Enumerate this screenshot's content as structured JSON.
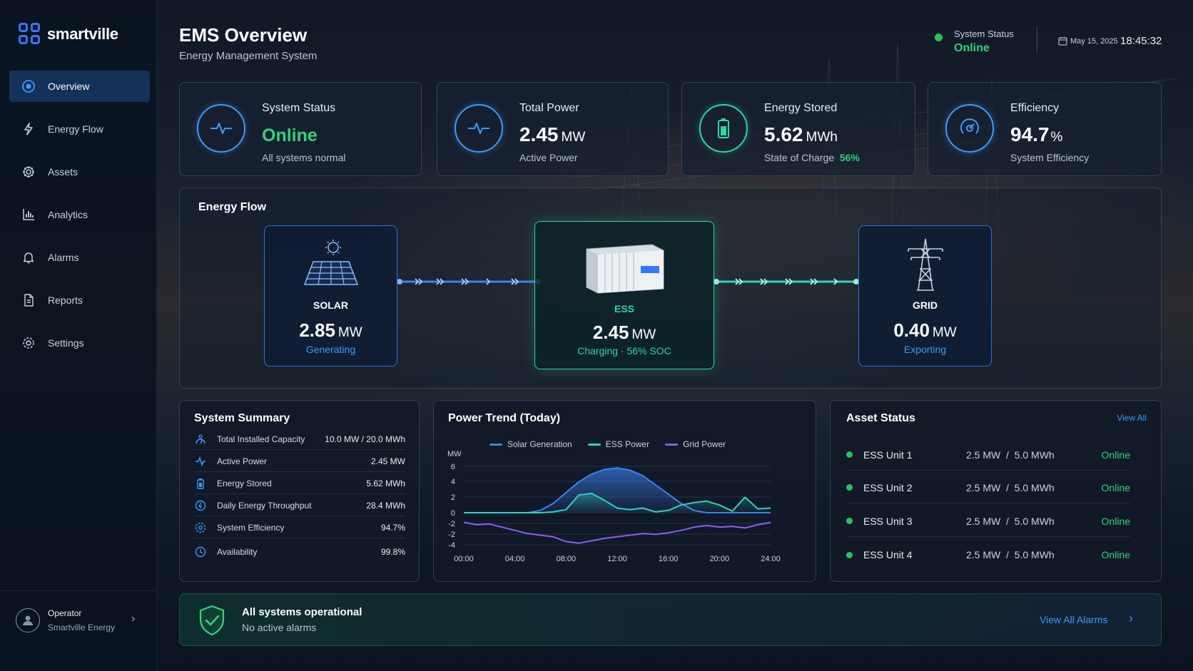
{
  "brand": {
    "name": "smartville"
  },
  "colors": {
    "accent": "#2f7bff",
    "online": "#22c55e",
    "ess": "#2fd6a0",
    "grid": "#8b5cf6"
  },
  "sidebar": {
    "items": [
      {
        "label": "Overview",
        "icon": "overview-icon",
        "active": true
      },
      {
        "label": "Energy Flow",
        "icon": "energy-flow-icon"
      },
      {
        "label": "Assets",
        "icon": "assets-icon"
      },
      {
        "label": "Analytics",
        "icon": "analytics-icon"
      },
      {
        "label": "Alarms",
        "icon": "bell-icon"
      },
      {
        "label": "Reports",
        "icon": "report-icon"
      },
      {
        "label": "Settings",
        "icon": "gear-icon"
      }
    ],
    "operator": {
      "name": "Operator",
      "org": "Smartville Energy"
    }
  },
  "header": {
    "title": "EMS Overview",
    "subtitle": "Energy Management System",
    "status_label": "System Status",
    "status_value": "Online",
    "date": "May 15, 2025",
    "time": "18:45:32"
  },
  "kpis": [
    {
      "title": "System Status",
      "value": "Online",
      "unit": "",
      "sub": "All systems normal",
      "icon": "pulse-icon"
    },
    {
      "title": "Total Power",
      "value": "2.45",
      "unit": "MW",
      "sub": "Active Power",
      "icon": "pulse-icon"
    },
    {
      "title": "Energy Stored",
      "value": "5.62",
      "unit": "MWh",
      "sub": "State of Charge",
      "sub_value": "56%",
      "icon": "battery-icon"
    },
    {
      "title": "Efficiency",
      "value": "94.7",
      "unit": "%",
      "sub": "System Efficiency",
      "icon": "gauge-icon"
    }
  ],
  "energy_flow": {
    "title": "Energy Flow",
    "solar": {
      "name": "SOLAR",
      "value": "2.85",
      "unit": "MW",
      "state": "Generating"
    },
    "ess": {
      "name": "ESS",
      "value": "2.45",
      "unit": "MW",
      "state": "Charging",
      "soc": "56% SOC",
      "sep": "·"
    },
    "grid": {
      "name": "GRID",
      "value": "0.40",
      "unit": "MW",
      "state": "Exporting"
    }
  },
  "summary": {
    "title": "System Summary",
    "rows": [
      {
        "label": "Total Installed Capacity",
        "value": "10.0 MW / 20.0 MWh",
        "icon": "capacity-icon"
      },
      {
        "label": "Active Power",
        "value": "2.45 MW",
        "icon": "pulse-icon"
      },
      {
        "label": "Energy Stored",
        "value": "5.62 MWh",
        "icon": "battery-icon"
      },
      {
        "label": "Daily Energy Throughput",
        "value": "28.4 MWh",
        "icon": "throughput-icon"
      },
      {
        "label": "System Efficiency",
        "value": "94.7%",
        "icon": "gauge-icon"
      },
      {
        "label": "Availability",
        "value": "99.8%",
        "icon": "clock-icon"
      }
    ]
  },
  "chart_data": {
    "type": "line",
    "title": "Power Trend (Today)",
    "ylabel": "MW",
    "yticks": [
      "6",
      "4",
      "2",
      "0",
      "-2",
      "-2",
      "-4"
    ],
    "xticks": [
      "00:00",
      "04:00",
      "08:00",
      "12:00",
      "16:00",
      "20:00",
      "24:00"
    ],
    "x": [
      0,
      1,
      2,
      3,
      4,
      5,
      6,
      7,
      8,
      9,
      10,
      11,
      12,
      13,
      14,
      15,
      16,
      17,
      18,
      19,
      20,
      21,
      22,
      23,
      24
    ],
    "series": [
      {
        "name": "Solar Generation",
        "color": "#3b82f6",
        "values": [
          0,
          0,
          0,
          0,
          0,
          0,
          0.3,
          1.2,
          2.6,
          4.0,
          5.0,
          5.6,
          5.8,
          5.5,
          4.8,
          3.6,
          2.4,
          1.2,
          0.3,
          0,
          0,
          0,
          0,
          0,
          0
        ]
      },
      {
        "name": "ESS Power",
        "color": "#2dd4bf",
        "values": [
          0,
          0,
          0,
          0,
          0,
          0,
          0,
          0.1,
          0.4,
          2.3,
          2.5,
          1.6,
          0.6,
          0.4,
          0.6,
          0.1,
          0.3,
          1.0,
          1.3,
          1.5,
          1.0,
          0.2,
          2.0,
          0.5,
          0.6
        ]
      },
      {
        "name": "Grid Power",
        "color": "#8b5cf6",
        "values": [
          -1.2,
          -1.5,
          -1.4,
          -1.8,
          -2.2,
          -2.6,
          -2.8,
          -3.0,
          -3.6,
          -3.8,
          -3.5,
          -3.2,
          -3.0,
          -2.8,
          -2.6,
          -2.7,
          -2.5,
          -2.2,
          -1.8,
          -1.6,
          -1.8,
          -1.7,
          -1.9,
          -1.5,
          -1.2
        ]
      }
    ]
  },
  "assets": {
    "title": "Asset Status",
    "view_all": "View All",
    "rows": [
      {
        "name": "ESS Unit 1",
        "spec": "2.5 MW  /  5.0 MWh",
        "status": "Online"
      },
      {
        "name": "ESS Unit 2",
        "spec": "2.5 MW  /  5.0 MWh",
        "status": "Online"
      },
      {
        "name": "ESS Unit 3",
        "spec": "2.5 MW  /  5.0 MWh",
        "status": "Online"
      },
      {
        "name": "ESS Unit 4",
        "spec": "2.5 MW  /  5.0 MWh",
        "status": "Online"
      }
    ]
  },
  "banner": {
    "title": "All systems operational",
    "subtitle": "No active alarms",
    "link": "View All Alarms"
  }
}
